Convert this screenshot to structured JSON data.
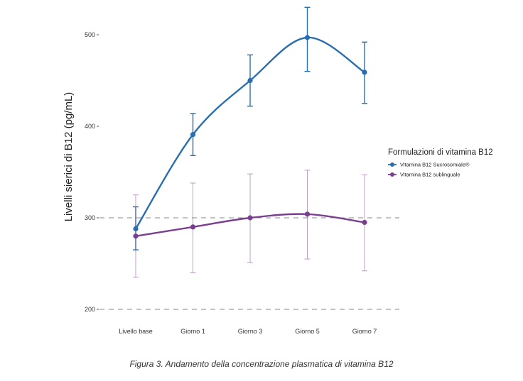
{
  "chart_data": {
    "type": "line",
    "categories": [
      "Livello base",
      "Giorno 1",
      "Giorno 3",
      "Giorno 5",
      "Giorno 7"
    ],
    "ylabel": "Livelli sierici di B12 (pg/mL)",
    "xlabel": "",
    "ylim": [
      190,
      520
    ],
    "yticks": [
      200,
      300,
      400,
      500
    ],
    "reference_lines": [
      200,
      300
    ],
    "legend_title": "Formulazioni di vitamina B12",
    "legend_position": "right",
    "series": [
      {
        "name": "Vitamina B12 Sucrosomiale®",
        "color": "#2a6eaf",
        "values": [
          288,
          391,
          450,
          497,
          459
        ],
        "error_low": [
          265,
          368,
          422,
          460,
          425
        ],
        "error_high": [
          312,
          414,
          478,
          530,
          492
        ]
      },
      {
        "name": "Vitamina B12 sublinguale",
        "color": "#7b3f8f",
        "values": [
          280,
          290,
          300,
          304,
          295
        ],
        "error_low": [
          235,
          240,
          251,
          255,
          242
        ],
        "error_high": [
          325,
          338,
          348,
          352,
          347
        ]
      }
    ],
    "caption": "Figura 3. Andamento della concentrazione plasmatica di vitamina B12"
  }
}
